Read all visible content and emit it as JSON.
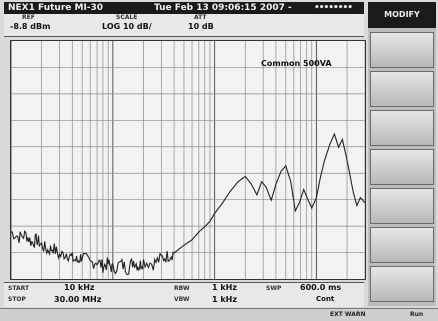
{
  "title_bar": {
    "model": "NEX1 Future MI-30",
    "datetime": "Tue Feb 13 09:06:15 2007 -",
    "indicator": "••••••••"
  },
  "header": {
    "ref_label": "REF",
    "ref_value": "-8.8 dBm",
    "scale_label": "SCALE",
    "scale_value": "LOG 10 dB/",
    "att_label": "ATT",
    "att_value": "10 dB"
  },
  "annotation": "Common 500VA",
  "footer": {
    "start_label": "START",
    "start_value": "10 kHz",
    "stop_label": "STOP",
    "stop_value": "30.00 MHz",
    "rbw_label": "RBW",
    "rbw_value": "1 kHz",
    "vbw_label": "VBW",
    "vbw_value": "1 kHz",
    "swp_label": "SWP",
    "swp_value": "600.0 ms",
    "cont_value": "Cont"
  },
  "softkeys": {
    "title": "MODIFY",
    "count": 7
  },
  "status": {
    "warning": "EXT WARN",
    "state": "Run"
  },
  "chart_data": {
    "type": "line",
    "x_scale": "log",
    "xlim_hz": [
      10000,
      30000000
    ],
    "ylim_db": [
      -98.8,
      -8.8
    ],
    "y_divisions": 9,
    "grid": true,
    "series": [
      {
        "values_db": [
          [
            10000,
            -81
          ],
          [
            12000,
            -83
          ],
          [
            14000,
            -82
          ],
          [
            16000,
            -85
          ],
          [
            18000,
            -84
          ],
          [
            20000,
            -86
          ],
          [
            23000,
            -88
          ],
          [
            26000,
            -87
          ],
          [
            30000,
            -90
          ],
          [
            35000,
            -89
          ],
          [
            40000,
            -91
          ],
          [
            45000,
            -92
          ],
          [
            50000,
            -90
          ],
          [
            60000,
            -93
          ],
          [
            70000,
            -92
          ],
          [
            80000,
            -94
          ],
          [
            90000,
            -93
          ],
          [
            100000,
            -95
          ],
          [
            120000,
            -93
          ],
          [
            140000,
            -95
          ],
          [
            160000,
            -92
          ],
          [
            180000,
            -94
          ],
          [
            200000,
            -92
          ],
          [
            250000,
            -93
          ],
          [
            300000,
            -91
          ],
          [
            350000,
            -90
          ],
          [
            400000,
            -89
          ],
          [
            500000,
            -86
          ],
          [
            600000,
            -84
          ],
          [
            700000,
            -81
          ],
          [
            800000,
            -79
          ],
          [
            900000,
            -77
          ],
          [
            1000000,
            -74
          ],
          [
            1200000,
            -70
          ],
          [
            1400000,
            -66
          ],
          [
            1700000,
            -62
          ],
          [
            2000000,
            -60
          ],
          [
            2300000,
            -63
          ],
          [
            2600000,
            -67
          ],
          [
            2900000,
            -62
          ],
          [
            3200000,
            -64
          ],
          [
            3600000,
            -69
          ],
          [
            4000000,
            -63
          ],
          [
            4500000,
            -58
          ],
          [
            5000000,
            -56
          ],
          [
            5600000,
            -62
          ],
          [
            6200000,
            -73
          ],
          [
            6800000,
            -70
          ],
          [
            7500000,
            -65
          ],
          [
            8300000,
            -69
          ],
          [
            9000000,
            -72
          ],
          [
            10000000,
            -68
          ],
          [
            11000000,
            -60
          ],
          [
            12000000,
            -54
          ],
          [
            13500000,
            -48
          ],
          [
            15000000,
            -44
          ],
          [
            16500000,
            -49
          ],
          [
            18000000,
            -46
          ],
          [
            19500000,
            -52
          ],
          [
            21000000,
            -58
          ],
          [
            23000000,
            -66
          ],
          [
            25000000,
            -71
          ],
          [
            27000000,
            -68
          ],
          [
            30000000,
            -70
          ]
        ]
      }
    ]
  }
}
